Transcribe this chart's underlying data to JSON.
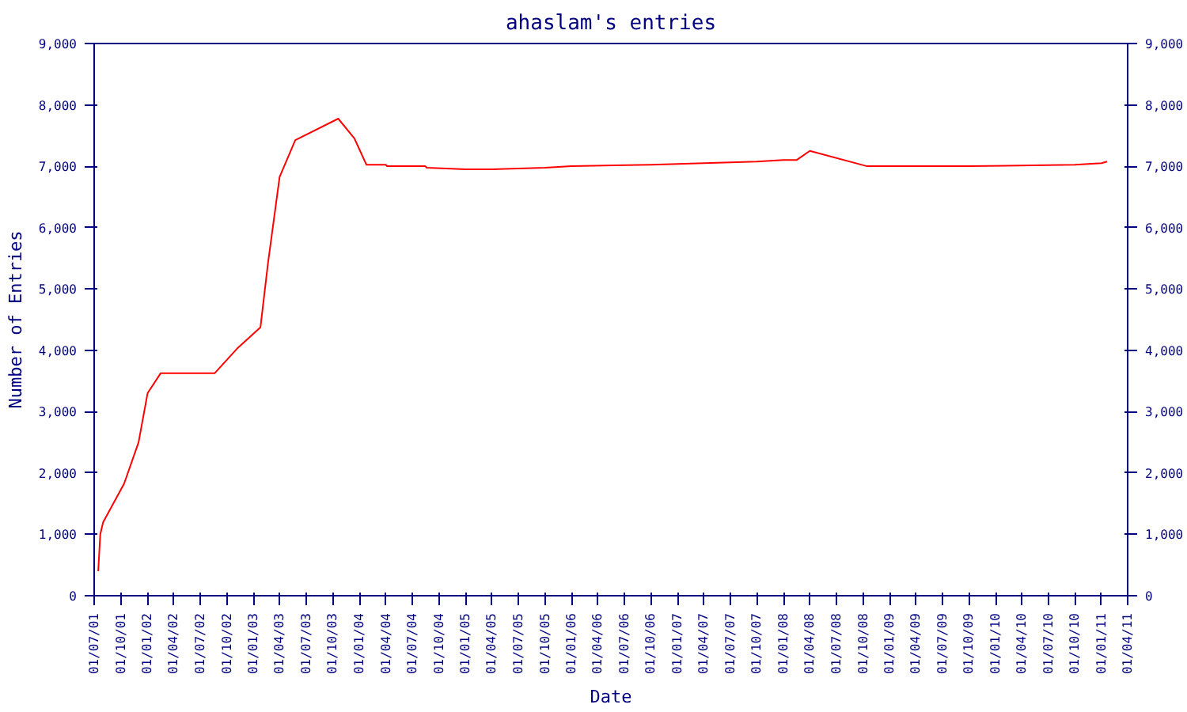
{
  "chart_data": {
    "type": "line",
    "title": "ahaslam's entries",
    "xlabel": "Date",
    "ylabel": "Number of Entries",
    "x": [
      "2001-07-15",
      "2001-07-22",
      "2001-08-01",
      "2001-10-12",
      "2001-12-01",
      "2002-01-01",
      "2002-02-15",
      "2002-08-20",
      "2002-11-05",
      "2003-01-25",
      "2003-02-20",
      "2003-04-01",
      "2003-05-25",
      "2003-10-20",
      "2003-12-15",
      "2004-01-25",
      "2004-04-01",
      "2004-04-05",
      "2004-08-15",
      "2004-08-20",
      "2005-01-01",
      "2005-04-01",
      "2005-10-01",
      "2006-01-01",
      "2006-10-01",
      "2007-04-01",
      "2007-10-01",
      "2008-01-01",
      "2008-02-15",
      "2008-04-01",
      "2008-10-15",
      "2009-10-01",
      "2010-10-01",
      "2011-01-01",
      "2011-01-20"
    ],
    "series": [
      {
        "color": "#ff0000",
        "values": [
          400,
          1000,
          1200,
          1825,
          2500,
          3300,
          3625,
          3625,
          4025,
          4375,
          5425,
          6825,
          7425,
          7775,
          7450,
          7025,
          7025,
          7000,
          7000,
          6975,
          6950,
          6950,
          6975,
          7000,
          7025,
          7050,
          7075,
          7100,
          7100,
          7250,
          7000,
          7000,
          7025,
          7050,
          7075
        ]
      }
    ],
    "xlim": [
      "2001-07-01",
      "2011-04-01"
    ],
    "xticks": [
      {
        "value": "2001-07-01",
        "label": "01/07/01"
      },
      {
        "value": "2001-10-01",
        "label": "01/10/01"
      },
      {
        "value": "2002-01-01",
        "label": "01/01/02"
      },
      {
        "value": "2002-04-01",
        "label": "01/04/02"
      },
      {
        "value": "2002-07-01",
        "label": "01/07/02"
      },
      {
        "value": "2002-10-01",
        "label": "01/10/02"
      },
      {
        "value": "2003-01-01",
        "label": "01/01/03"
      },
      {
        "value": "2003-04-01",
        "label": "01/04/03"
      },
      {
        "value": "2003-07-01",
        "label": "01/07/03"
      },
      {
        "value": "2003-10-01",
        "label": "01/10/03"
      },
      {
        "value": "2004-01-01",
        "label": "01/01/04"
      },
      {
        "value": "2004-04-01",
        "label": "01/04/04"
      },
      {
        "value": "2004-07-01",
        "label": "01/07/04"
      },
      {
        "value": "2004-10-01",
        "label": "01/10/04"
      },
      {
        "value": "2005-01-01",
        "label": "01/01/05"
      },
      {
        "value": "2005-04-01",
        "label": "01/04/05"
      },
      {
        "value": "2005-07-01",
        "label": "01/07/05"
      },
      {
        "value": "2005-10-01",
        "label": "01/10/05"
      },
      {
        "value": "2006-01-01",
        "label": "01/01/06"
      },
      {
        "value": "2006-04-01",
        "label": "01/04/06"
      },
      {
        "value": "2006-07-01",
        "label": "01/07/06"
      },
      {
        "value": "2006-10-01",
        "label": "01/10/06"
      },
      {
        "value": "2007-01-01",
        "label": "01/01/07"
      },
      {
        "value": "2007-04-01",
        "label": "01/04/07"
      },
      {
        "value": "2007-07-01",
        "label": "01/07/07"
      },
      {
        "value": "2007-10-01",
        "label": "01/10/07"
      },
      {
        "value": "2008-01-01",
        "label": "01/01/08"
      },
      {
        "value": "2008-04-01",
        "label": "01/04/08"
      },
      {
        "value": "2008-07-01",
        "label": "01/07/08"
      },
      {
        "value": "2008-10-01",
        "label": "01/10/08"
      },
      {
        "value": "2009-01-01",
        "label": "01/01/09"
      },
      {
        "value": "2009-04-01",
        "label": "01/04/09"
      },
      {
        "value": "2009-07-01",
        "label": "01/07/09"
      },
      {
        "value": "2009-10-01",
        "label": "01/10/09"
      },
      {
        "value": "2010-01-01",
        "label": "01/01/10"
      },
      {
        "value": "2010-04-01",
        "label": "01/04/10"
      },
      {
        "value": "2010-07-01",
        "label": "01/07/10"
      },
      {
        "value": "2010-10-01",
        "label": "01/10/10"
      },
      {
        "value": "2011-01-01",
        "label": "01/01/11"
      },
      {
        "value": "2011-04-01",
        "label": "01/04/11"
      }
    ],
    "ylim": [
      0,
      9000
    ],
    "yticks": [
      0,
      {
        "value": 1000,
        "label": "1,000"
      },
      {
        "value": 2000,
        "label": "2,000"
      },
      {
        "value": 3000,
        "label": "3,000"
      },
      {
        "value": 4000,
        "label": "4,000"
      },
      {
        "value": 5000,
        "label": "5,000"
      },
      {
        "value": 6000,
        "label": "6,000"
      },
      {
        "value": 7000,
        "label": "7,000"
      },
      {
        "value": 8000,
        "label": "8,000"
      },
      {
        "value": 9000,
        "label": "9,000"
      }
    ],
    "y2lim": [
      0,
      9000
    ],
    "y2ticks": [
      0,
      {
        "value": 1000,
        "label": "1,000"
      },
      {
        "value": 2000,
        "label": "2,000"
      },
      {
        "value": 3000,
        "label": "3,000"
      },
      {
        "value": 4000,
        "label": "4,000"
      },
      {
        "value": 5000,
        "label": "5,000"
      },
      {
        "value": 6000,
        "label": "6,000"
      },
      {
        "value": 7000,
        "label": "7,000"
      },
      {
        "value": 8000,
        "label": "8,000"
      },
      {
        "value": 9000,
        "label": "9,000"
      }
    ],
    "grid": false,
    "marker": "none",
    "line_style": "solid"
  }
}
